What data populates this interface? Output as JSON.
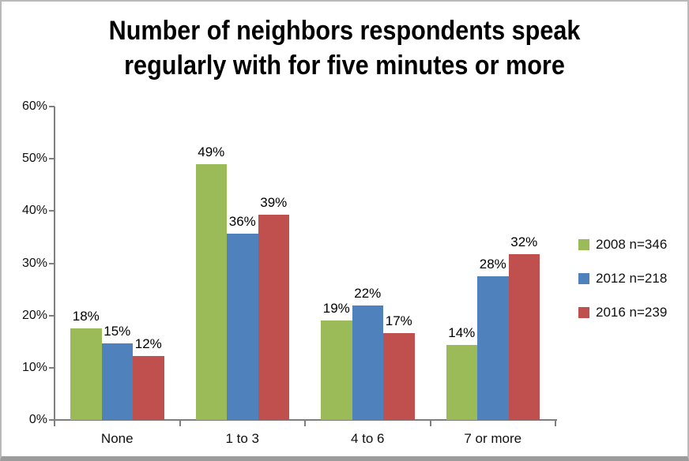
{
  "chart_data": {
    "type": "bar",
    "title": "Number of neighbors respondents speak regularly with for five minutes or more",
    "categories": [
      "None",
      "1 to 3",
      "4 to 6",
      "7 or more"
    ],
    "series": [
      {
        "name": "2008 n=346",
        "color": "#9BBB59",
        "values": [
          17.5,
          48.9,
          19.0,
          14.4
        ],
        "labels": [
          "18%",
          "49%",
          "19%",
          "14%"
        ]
      },
      {
        "name": "2012 n=218",
        "color": "#4F81BD",
        "values": [
          14.7,
          35.6,
          21.9,
          27.5
        ],
        "labels": [
          "15%",
          "36%",
          "22%",
          "28%"
        ]
      },
      {
        "name": "2016 n=239",
        "color": "#C0504D",
        "values": [
          12.2,
          39.3,
          16.6,
          31.7
        ],
        "labels": [
          "12%",
          "39%",
          "17%",
          "32%"
        ]
      }
    ],
    "y_axis": {
      "ticks": [
        "0%",
        "10%",
        "20%",
        "30%",
        "40%",
        "50%",
        "60%"
      ],
      "min": 0,
      "max": 60,
      "step": 10
    },
    "xlabel": "",
    "ylabel": "",
    "legend_position": "right",
    "grid": false,
    "colors": {
      "axis": "#7f7f7f",
      "text": "#111111",
      "background": "#ffffff",
      "frame_border": "#9c9c9c"
    }
  }
}
